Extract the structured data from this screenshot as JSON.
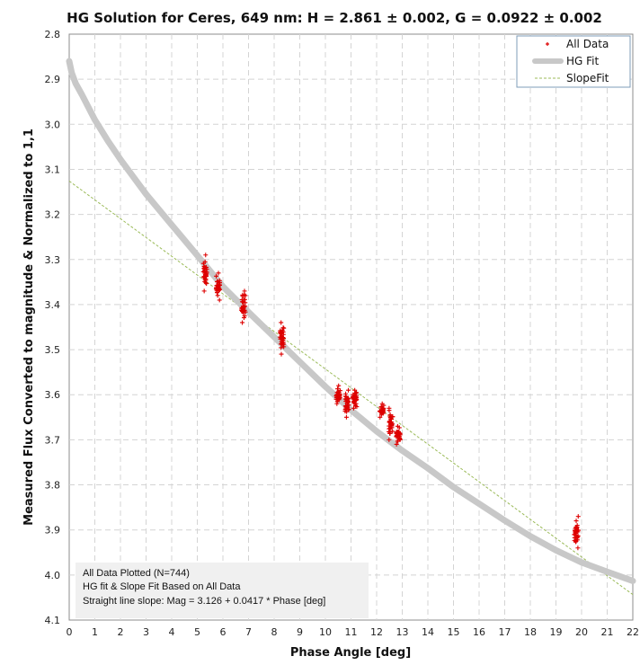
{
  "chart_data": {
    "type": "scatter",
    "title": "HG Solution for Ceres, 649 nm:  H = 2.861 ± 0.002, G = 0.0922 ± 0.002",
    "xlabel": "Phase Angle [deg]",
    "ylabel": "Measured Flux Converted to magnitude & Normalized to 1,1",
    "xlim": [
      0,
      22
    ],
    "ylim": [
      2.8,
      4.1
    ],
    "y_inverted": true,
    "x_ticks": [
      "0",
      "1",
      "2",
      "3",
      "4",
      "5",
      "6",
      "7",
      "8",
      "9",
      "10",
      "11",
      "12",
      "13",
      "14",
      "15",
      "16",
      "17",
      "18",
      "19",
      "20",
      "21",
      "22"
    ],
    "y_ticks": [
      "2.8",
      "2.9",
      "3.0",
      "3.1",
      "3.2",
      "3.3",
      "3.4",
      "3.5",
      "3.6",
      "3.7",
      "3.8",
      "3.9",
      "4.0",
      "4.1"
    ],
    "grid": true,
    "legend_position": "top-right",
    "series": [
      {
        "name": "All Data",
        "kind": "markers",
        "color": "#dd0000",
        "clusters": [
          {
            "x": 5.3,
            "ymin": 3.29,
            "ymax": 3.37,
            "y_center": 3.33
          },
          {
            "x": 5.8,
            "ymin": 3.33,
            "ymax": 3.39,
            "y_center": 3.36
          },
          {
            "x": 6.8,
            "ymin": 3.37,
            "ymax": 3.44,
            "y_center": 3.41
          },
          {
            "x": 8.3,
            "ymin": 3.44,
            "ymax": 3.51,
            "y_center": 3.47
          },
          {
            "x": 10.5,
            "ymin": 3.58,
            "ymax": 3.62,
            "y_center": 3.6
          },
          {
            "x": 10.85,
            "ymin": 3.59,
            "ymax": 3.65,
            "y_center": 3.62
          },
          {
            "x": 11.15,
            "ymin": 3.59,
            "ymax": 3.63,
            "y_center": 3.61
          },
          {
            "x": 12.2,
            "ymin": 3.62,
            "ymax": 3.65,
            "y_center": 3.63
          },
          {
            "x": 12.55,
            "ymin": 3.63,
            "ymax": 3.7,
            "y_center": 3.66
          },
          {
            "x": 12.85,
            "ymin": 3.67,
            "ymax": 3.71,
            "y_center": 3.69
          },
          {
            "x": 19.8,
            "ymin": 3.87,
            "ymax": 3.94,
            "y_center": 3.905
          }
        ]
      },
      {
        "name": "HG Fit",
        "kind": "line",
        "color": "#c8c8c8",
        "x": [
          0,
          0.1,
          0.25,
          0.5,
          1,
          1.5,
          2,
          3,
          4,
          5,
          6,
          7,
          8,
          9,
          10,
          11,
          12,
          13,
          14,
          15,
          16,
          17,
          18,
          19,
          20,
          21,
          22
        ],
        "y": [
          2.86,
          2.886,
          2.909,
          2.935,
          2.99,
          3.036,
          3.078,
          3.155,
          3.223,
          3.291,
          3.36,
          3.417,
          3.472,
          3.527,
          3.582,
          3.634,
          3.681,
          3.724,
          3.763,
          3.805,
          3.842,
          3.879,
          3.914,
          3.945,
          3.972,
          3.993,
          4.013
        ]
      },
      {
        "name": "SlopeFit",
        "kind": "line",
        "color": "#9bbb59",
        "dashed": true,
        "intercept": 3.126,
        "slope": 0.0417,
        "x": [
          0,
          22
        ],
        "y": [
          3.126,
          4.0434
        ]
      }
    ],
    "annotations": [
      "All Data Plotted (N=744)",
      "HG fit & Slope Fit Based on All Data",
      "Straight line slope:  Mag = 3.126 + 0.0417 * Phase [deg]"
    ]
  }
}
